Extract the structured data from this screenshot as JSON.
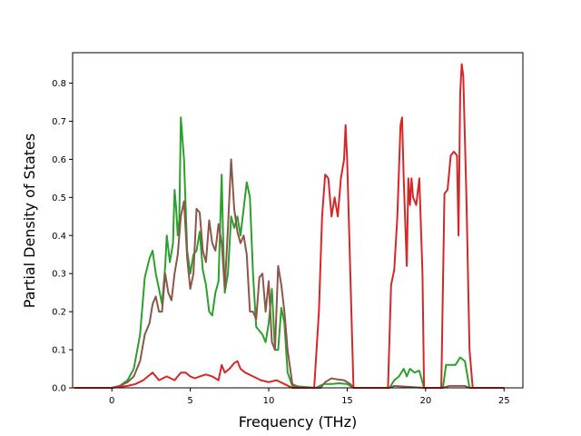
{
  "chart_data": {
    "type": "line",
    "title": "",
    "xlabel": "Frequency (THz)",
    "ylabel": "Partial Density of States",
    "xlim": [
      -2.5,
      26.2
    ],
    "ylim": [
      0,
      0.88
    ],
    "xticks": [
      0,
      5,
      10,
      15,
      20,
      25
    ],
    "xtick_labels": [
      "0",
      "5",
      "10",
      "15",
      "20",
      "25"
    ],
    "yticks": [
      0.0,
      0.1,
      0.2,
      0.3,
      0.4,
      0.5,
      0.6,
      0.7,
      0.8
    ],
    "ytick_labels": [
      "0.0",
      "0.1",
      "0.2",
      "0.3",
      "0.4",
      "0.5",
      "0.6",
      "0.7",
      "0.8"
    ],
    "grid": false,
    "legend": "none",
    "series": [
      {
        "color": "#2ca02c",
        "points": [
          [
            -2.4,
            0
          ],
          [
            0,
            0
          ],
          [
            0.5,
            0.005
          ],
          [
            1,
            0.02
          ],
          [
            1.4,
            0.05
          ],
          [
            1.8,
            0.14
          ],
          [
            2.1,
            0.29
          ],
          [
            2.4,
            0.34
          ],
          [
            2.6,
            0.36
          ],
          [
            2.8,
            0.3
          ],
          [
            3.0,
            0.26
          ],
          [
            3.2,
            0.22
          ],
          [
            3.4,
            0.32
          ],
          [
            3.5,
            0.4
          ],
          [
            3.7,
            0.33
          ],
          [
            3.9,
            0.38
          ],
          [
            4.0,
            0.52
          ],
          [
            4.1,
            0.47
          ],
          [
            4.2,
            0.4
          ],
          [
            4.3,
            0.44
          ],
          [
            4.4,
            0.71
          ],
          [
            4.6,
            0.6
          ],
          [
            4.8,
            0.36
          ],
          [
            5.0,
            0.3
          ],
          [
            5.2,
            0.35
          ],
          [
            5.4,
            0.36
          ],
          [
            5.6,
            0.41
          ],
          [
            5.8,
            0.31
          ],
          [
            6.0,
            0.27
          ],
          [
            6.2,
            0.2
          ],
          [
            6.4,
            0.19
          ],
          [
            6.6,
            0.25
          ],
          [
            6.8,
            0.28
          ],
          [
            7.0,
            0.56
          ],
          [
            7.1,
            0.38
          ],
          [
            7.2,
            0.25
          ],
          [
            7.4,
            0.3
          ],
          [
            7.6,
            0.45
          ],
          [
            7.8,
            0.42
          ],
          [
            8.0,
            0.45
          ],
          [
            8.2,
            0.4
          ],
          [
            8.4,
            0.47
          ],
          [
            8.6,
            0.54
          ],
          [
            8.8,
            0.5
          ],
          [
            9.0,
            0.3
          ],
          [
            9.2,
            0.16
          ],
          [
            9.4,
            0.15
          ],
          [
            9.6,
            0.14
          ],
          [
            9.8,
            0.12
          ],
          [
            10.0,
            0.17
          ],
          [
            10.2,
            0.26
          ],
          [
            10.4,
            0.1
          ],
          [
            10.6,
            0.1
          ],
          [
            10.8,
            0.21
          ],
          [
            11.0,
            0.17
          ],
          [
            11.2,
            0.04
          ],
          [
            11.5,
            0.005
          ],
          [
            13.0,
            0.0
          ],
          [
            13.5,
            0.01
          ],
          [
            14.0,
            0.01
          ],
          [
            14.5,
            0.012
          ],
          [
            15.0,
            0.01
          ],
          [
            15.4,
            0.0
          ],
          [
            17.7,
            0.0
          ],
          [
            18.0,
            0.02
          ],
          [
            18.3,
            0.03
          ],
          [
            18.6,
            0.05
          ],
          [
            18.8,
            0.03
          ],
          [
            19.0,
            0.05
          ],
          [
            19.3,
            0.04
          ],
          [
            19.6,
            0.045
          ],
          [
            19.9,
            0.0
          ],
          [
            21.1,
            0.0
          ],
          [
            21.3,
            0.06
          ],
          [
            21.6,
            0.06
          ],
          [
            21.9,
            0.06
          ],
          [
            22.2,
            0.08
          ],
          [
            22.5,
            0.07
          ],
          [
            22.8,
            0.0
          ],
          [
            25.0,
            0
          ]
        ]
      },
      {
        "color": "#8c564b",
        "points": [
          [
            -2.4,
            0
          ],
          [
            0,
            0
          ],
          [
            0.5,
            0.005
          ],
          [
            1,
            0.015
          ],
          [
            1.4,
            0.03
          ],
          [
            1.8,
            0.07
          ],
          [
            2.1,
            0.14
          ],
          [
            2.4,
            0.17
          ],
          [
            2.6,
            0.22
          ],
          [
            2.8,
            0.24
          ],
          [
            3.0,
            0.2
          ],
          [
            3.2,
            0.2
          ],
          [
            3.4,
            0.3
          ],
          [
            3.6,
            0.25
          ],
          [
            3.8,
            0.23
          ],
          [
            4.0,
            0.3
          ],
          [
            4.2,
            0.35
          ],
          [
            4.4,
            0.45
          ],
          [
            4.6,
            0.49
          ],
          [
            4.8,
            0.34
          ],
          [
            5.0,
            0.26
          ],
          [
            5.2,
            0.3
          ],
          [
            5.4,
            0.47
          ],
          [
            5.6,
            0.46
          ],
          [
            5.8,
            0.36
          ],
          [
            6.0,
            0.33
          ],
          [
            6.2,
            0.44
          ],
          [
            6.4,
            0.38
          ],
          [
            6.6,
            0.36
          ],
          [
            6.8,
            0.43
          ],
          [
            7.0,
            0.38
          ],
          [
            7.2,
            0.26
          ],
          [
            7.4,
            0.42
          ],
          [
            7.6,
            0.6
          ],
          [
            7.8,
            0.47
          ],
          [
            8.0,
            0.41
          ],
          [
            8.2,
            0.38
          ],
          [
            8.4,
            0.4
          ],
          [
            8.6,
            0.35
          ],
          [
            8.8,
            0.2
          ],
          [
            9.0,
            0.2
          ],
          [
            9.2,
            0.18
          ],
          [
            9.4,
            0.29
          ],
          [
            9.6,
            0.3
          ],
          [
            9.8,
            0.2
          ],
          [
            10.0,
            0.28
          ],
          [
            10.2,
            0.12
          ],
          [
            10.4,
            0.1
          ],
          [
            10.6,
            0.32
          ],
          [
            10.8,
            0.27
          ],
          [
            11.0,
            0.2
          ],
          [
            11.2,
            0.1
          ],
          [
            11.5,
            0.01
          ],
          [
            12.0,
            0.0
          ],
          [
            13.3,
            0.0
          ],
          [
            13.6,
            0.015
          ],
          [
            14.0,
            0.025
          ],
          [
            14.4,
            0.022
          ],
          [
            14.8,
            0.02
          ],
          [
            15.2,
            0.01
          ],
          [
            15.4,
            0.0
          ],
          [
            17.7,
            0.0
          ],
          [
            18.0,
            0.005
          ],
          [
            19.9,
            0.0
          ],
          [
            21.1,
            0.0
          ],
          [
            21.5,
            0.005
          ],
          [
            22.5,
            0.005
          ],
          [
            22.8,
            0.0
          ],
          [
            25.0,
            0
          ]
        ]
      },
      {
        "color": "#d62728",
        "points": [
          [
            -2.4,
            0
          ],
          [
            0,
            0
          ],
          [
            1,
            0.005
          ],
          [
            1.5,
            0.01
          ],
          [
            2,
            0.02
          ],
          [
            2.3,
            0.03
          ],
          [
            2.6,
            0.04
          ],
          [
            2.8,
            0.03
          ],
          [
            3,
            0.02
          ],
          [
            3.5,
            0.03
          ],
          [
            4,
            0.02
          ],
          [
            4.4,
            0.04
          ],
          [
            4.7,
            0.04
          ],
          [
            5,
            0.03
          ],
          [
            5.3,
            0.025
          ],
          [
            5.6,
            0.03
          ],
          [
            6,
            0.035
          ],
          [
            6.4,
            0.03
          ],
          [
            6.8,
            0.02
          ],
          [
            7.0,
            0.06
          ],
          [
            7.2,
            0.04
          ],
          [
            7.5,
            0.05
          ],
          [
            7.8,
            0.065
          ],
          [
            8.0,
            0.07
          ],
          [
            8.2,
            0.05
          ],
          [
            8.5,
            0.04
          ],
          [
            9.0,
            0.03
          ],
          [
            9.5,
            0.02
          ],
          [
            10.0,
            0.015
          ],
          [
            10.5,
            0.02
          ],
          [
            11.0,
            0.01
          ],
          [
            11.5,
            0.0
          ],
          [
            12.9,
            0.0
          ],
          [
            13.2,
            0.2
          ],
          [
            13.4,
            0.45
          ],
          [
            13.6,
            0.56
          ],
          [
            13.8,
            0.55
          ],
          [
            14.0,
            0.45
          ],
          [
            14.2,
            0.5
          ],
          [
            14.4,
            0.45
          ],
          [
            14.6,
            0.55
          ],
          [
            14.8,
            0.6
          ],
          [
            14.9,
            0.69
          ],
          [
            15.0,
            0.6
          ],
          [
            15.2,
            0.3
          ],
          [
            15.4,
            0.0
          ],
          [
            17.6,
            0.0
          ],
          [
            17.8,
            0.27
          ],
          [
            18.0,
            0.31
          ],
          [
            18.2,
            0.45
          ],
          [
            18.4,
            0.69
          ],
          [
            18.5,
            0.71
          ],
          [
            18.6,
            0.55
          ],
          [
            18.8,
            0.32
          ],
          [
            18.9,
            0.55
          ],
          [
            19.0,
            0.48
          ],
          [
            19.1,
            0.55
          ],
          [
            19.2,
            0.5
          ],
          [
            19.4,
            0.48
          ],
          [
            19.6,
            0.55
          ],
          [
            19.8,
            0.3
          ],
          [
            19.9,
            0.0
          ],
          [
            21.0,
            0.0
          ],
          [
            21.2,
            0.51
          ],
          [
            21.4,
            0.52
          ],
          [
            21.6,
            0.61
          ],
          [
            21.8,
            0.62
          ],
          [
            22.0,
            0.61
          ],
          [
            22.1,
            0.4
          ],
          [
            22.2,
            0.77
          ],
          [
            22.3,
            0.85
          ],
          [
            22.4,
            0.82
          ],
          [
            22.6,
            0.5
          ],
          [
            22.8,
            0.1
          ],
          [
            23.0,
            0.0
          ],
          [
            25.0,
            0
          ]
        ]
      }
    ]
  }
}
